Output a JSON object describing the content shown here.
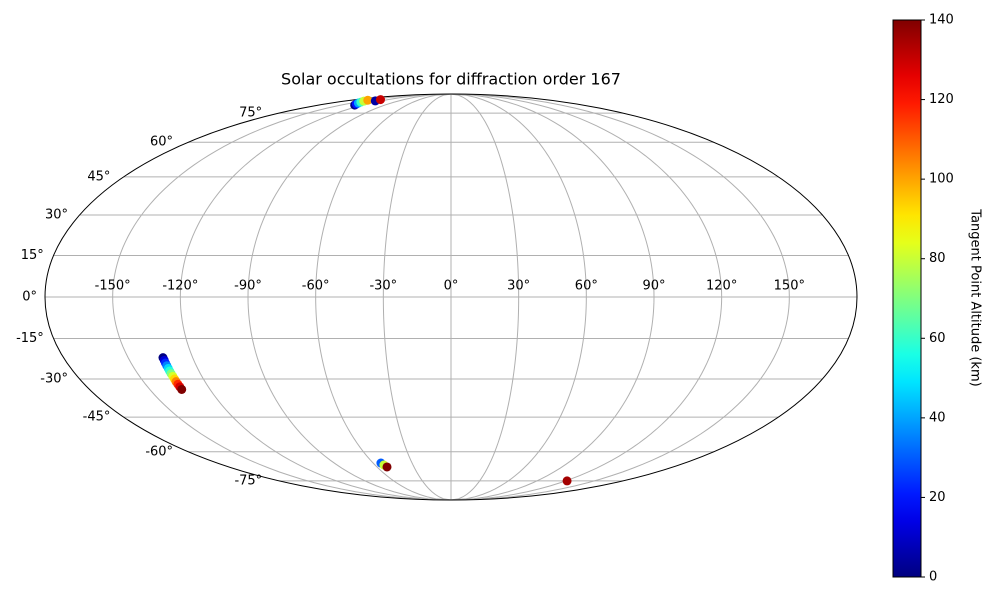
{
  "chart_data": {
    "type": "scatter",
    "projection": "mollweide",
    "title": "Solar occultations for diffraction order 167",
    "x": [
      -131,
      -135,
      -139,
      -143,
      -147,
      -150,
      -130,
      -134,
      -133.8,
      -133.8,
      -133.9,
      -133.9,
      -133.9,
      -134,
      -134,
      -134,
      -134,
      -134.1,
      -134.1,
      -134.1,
      -134.1,
      -54,
      -53,
      -51.9,
      121.6
    ],
    "y": [
      80,
      80.7,
      81.4,
      82.1,
      82.8,
      83.5,
      83,
      84,
      -22,
      -23,
      -24,
      -25,
      -26,
      -27,
      -28,
      -29,
      -30,
      -31,
      -32,
      -33,
      -34,
      -65.4,
      -66.4,
      -67.4,
      -75
    ],
    "c": [
      0,
      20,
      40,
      60,
      80,
      100,
      5,
      130,
      0,
      12,
      23,
      35,
      47,
      58,
      70,
      82,
      93,
      105,
      117,
      128,
      140,
      30,
      80,
      140,
      135
    ],
    "colormap": "jet",
    "xlim": [
      -180,
      180
    ],
    "ylim": [
      -90,
      90
    ],
    "xticks": [
      {
        "value": -150,
        "label": "-150°"
      },
      {
        "value": -120,
        "label": "-120°"
      },
      {
        "value": -90,
        "label": "-90°"
      },
      {
        "value": -60,
        "label": "-60°"
      },
      {
        "value": -30,
        "label": "-30°"
      },
      {
        "value": 0,
        "label": "0°"
      },
      {
        "value": 30,
        "label": "30°"
      },
      {
        "value": 60,
        "label": "60°"
      },
      {
        "value": 90,
        "label": "90°"
      },
      {
        "value": 120,
        "label": "120°"
      },
      {
        "value": 150,
        "label": "150°"
      }
    ],
    "yticks": [
      {
        "value": -75,
        "label": "-75°"
      },
      {
        "value": -60,
        "label": "-60°"
      },
      {
        "value": -45,
        "label": "-45°"
      },
      {
        "value": -30,
        "label": "-30°"
      },
      {
        "value": -15,
        "label": "-15°"
      },
      {
        "value": 0,
        "label": "0°"
      },
      {
        "value": 15,
        "label": "15°"
      },
      {
        "value": 30,
        "label": "30°"
      },
      {
        "value": 45,
        "label": "45°"
      },
      {
        "value": 60,
        "label": "60°"
      },
      {
        "value": 75,
        "label": "75°"
      }
    ],
    "grid": true,
    "colorbar": {
      "label": "Tangent Point Altitude (km)",
      "clim": [
        0,
        140
      ],
      "ticks": [
        0,
        20,
        40,
        60,
        80,
        100,
        120,
        140
      ]
    }
  }
}
